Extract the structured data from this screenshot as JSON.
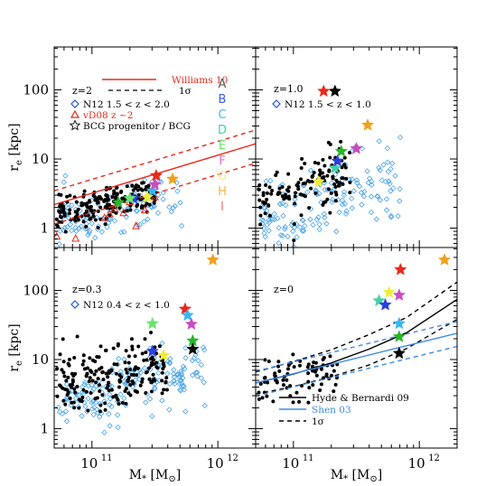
{
  "chart_data": [
    {
      "type": "scatter",
      "panel": "top-left",
      "xlim_log10": [
        10.7,
        12.3
      ],
      "ylim_log10": [
        -0.28,
        2.62
      ],
      "ylabel": "r_e [kpc]",
      "annotation": "z=2",
      "legend": [
        {
          "label": "Williams 10",
          "style": "line",
          "color": "#e8291c"
        },
        {
          "label": "1σ",
          "style": "dashed",
          "color": "#000000"
        },
        {
          "label": "N12  1.5 < z < 2.0",
          "style": "diamond",
          "color": "#1f55e0"
        },
        {
          "label": "vD08 z ~2",
          "style": "triangle",
          "color": "#e8291c"
        },
        {
          "label": "BCG progenitor / BCG",
          "style": "star",
          "color": "#000000"
        }
      ],
      "letters": [
        {
          "text": "A",
          "color": "#555555"
        },
        {
          "text": "B",
          "color": "#3b5be8"
        },
        {
          "text": "C",
          "color": "#41b7f0"
        },
        {
          "text": "D",
          "color": "#44cfa8"
        },
        {
          "text": "E",
          "color": "#6ee36e"
        },
        {
          "text": "F",
          "color": "#e86ad8"
        },
        {
          "text": "G",
          "color": "#f3f07a"
        },
        {
          "text": "H",
          "color": "#f5b54a"
        },
        {
          "text": "I",
          "color": "#f07070"
        }
      ],
      "lines": [
        {
          "name": "Williams 10",
          "color": "#e8291c",
          "dash": false,
          "x_log10": [
            10.7,
            12.3
          ],
          "y_log10": [
            0.34,
            1.22
          ]
        },
        {
          "name": "1σ upper",
          "color": "#e8291c",
          "dash": true,
          "x_log10": [
            10.7,
            12.3
          ],
          "y_log10": [
            0.54,
            1.42
          ]
        },
        {
          "name": "1σ lower",
          "color": "#e8291c",
          "dash": true,
          "x_log10": [
            10.7,
            12.3
          ],
          "y_log10": [
            0.06,
            0.94
          ]
        }
      ],
      "triangles_log": [
        [
          10.72,
          -0.12
        ],
        [
          10.87,
          -0.15
        ],
        [
          11.1,
          0.15
        ],
        [
          11.14,
          0.2
        ],
        [
          11.18,
          0.28
        ],
        [
          11.3,
          0.38
        ],
        [
          11.25,
          0.22
        ],
        [
          11.35,
          0.03
        ],
        [
          11.5,
          0.45
        ],
        [
          11.42,
          0.26
        ]
      ],
      "stars_log": [
        {
          "x": 11.48,
          "y": 0.5,
          "color": "#000000"
        },
        {
          "x": 11.33,
          "y": 0.43,
          "color": "#2a3fe0"
        },
        {
          "x": 11.48,
          "y": 0.54,
          "color": "#38b8f0"
        },
        {
          "x": 11.21,
          "y": 0.37,
          "color": "#2ab52a"
        },
        {
          "x": 11.3,
          "y": 0.43,
          "color": "#6ee36e"
        },
        {
          "x": 11.5,
          "y": 0.63,
          "color": "#c94cc0"
        },
        {
          "x": 11.44,
          "y": 0.45,
          "color": "#f0ec3a"
        },
        {
          "x": 11.64,
          "y": 0.71,
          "color": "#f0a01e"
        },
        {
          "x": 11.51,
          "y": 0.76,
          "color": "#e8291c"
        }
      ],
      "seed": 11,
      "black_cloud": {
        "n": 200,
        "x_log10": [
          10.72,
          11.5
        ],
        "slope": 0.35,
        "y0": 0.32,
        "scatter": 0.13
      },
      "blue_cloud": {
        "n": 110,
        "x_log10": [
          10.72,
          11.72
        ],
        "slope": 0.3,
        "y0": 0.18,
        "scatter": 0.18
      }
    },
    {
      "type": "scatter",
      "panel": "top-right",
      "xlim_log10": [
        10.7,
        12.3
      ],
      "ylim_log10": [
        -0.28,
        2.62
      ],
      "annotation": "z=1.0",
      "legend": [
        {
          "label": "N12  1.5 < z < 1.0",
          "style": "diamond",
          "color": "#1f55e0"
        }
      ],
      "stars_log": [
        {
          "x": 11.33,
          "y": 1.98,
          "color": "#000000"
        },
        {
          "x": 11.24,
          "y": 1.98,
          "color": "#e8291c"
        },
        {
          "x": 11.59,
          "y": 1.49,
          "color": "#f0a01e"
        },
        {
          "x": 11.5,
          "y": 1.15,
          "color": "#c94cc0"
        },
        {
          "x": 11.38,
          "y": 1.11,
          "color": "#2ab52a"
        },
        {
          "x": 11.33,
          "y": 0.87,
          "color": "#44cfa8"
        },
        {
          "x": 11.35,
          "y": 0.97,
          "color": "#2a3fe0"
        },
        {
          "x": 11.2,
          "y": 0.67,
          "color": "#f0ec3a"
        }
      ],
      "seed": 23,
      "black_cloud": {
        "n": 130,
        "x_log10": [
          10.72,
          11.45
        ],
        "slope": 0.6,
        "y0": 0.55,
        "scatter": 0.2
      },
      "blue_cloud": {
        "n": 150,
        "x_log10": [
          10.72,
          11.85
        ],
        "slope": 0.55,
        "y0": 0.28,
        "scatter": 0.25
      }
    },
    {
      "type": "scatter",
      "panel": "bottom-left",
      "xlim_log10": [
        10.7,
        12.3
      ],
      "ylim_log10": [
        -0.28,
        2.62
      ],
      "ylabel": "r_e [kpc]",
      "xlabel": "M_* [M_⊙]",
      "annotation": "z=0.3",
      "legend": [
        {
          "label": "N12  0.4 < z < 1.0",
          "style": "diamond",
          "color": "#1f55e0"
        }
      ],
      "stars_log": [
        {
          "x": 11.96,
          "y": 2.44,
          "color": "#f0a01e"
        },
        {
          "x": 11.74,
          "y": 1.73,
          "color": "#e8291c"
        },
        {
          "x": 11.76,
          "y": 1.64,
          "color": "#38b8f0"
        },
        {
          "x": 11.79,
          "y": 1.51,
          "color": "#c94cc0"
        },
        {
          "x": 11.48,
          "y": 1.52,
          "color": "#6ee36e"
        },
        {
          "x": 11.8,
          "y": 1.27,
          "color": "#2ab52a"
        },
        {
          "x": 11.8,
          "y": 1.15,
          "color": "#000000"
        },
        {
          "x": 11.48,
          "y": 1.12,
          "color": "#2a3fe0"
        },
        {
          "x": 11.57,
          "y": 1.06,
          "color": "#f0ec3a"
        }
      ],
      "seed": 37,
      "black_cloud": {
        "n": 200,
        "x_log10": [
          10.72,
          11.6
        ],
        "slope": 0.3,
        "y0": 0.7,
        "scatter": 0.22
      },
      "blue_cloud": {
        "n": 170,
        "x_log10": [
          10.72,
          11.9
        ],
        "slope": 0.45,
        "y0": 0.45,
        "scatter": 0.22
      }
    },
    {
      "type": "scatter",
      "panel": "bottom-right",
      "xlim_log10": [
        10.7,
        12.3
      ],
      "ylim_log10": [
        -0.28,
        2.62
      ],
      "xlabel": "M_* [M_⊙]",
      "annotation": "z=0",
      "legend": [
        {
          "label": "Hyde & Bernardi 09",
          "style": "line",
          "color": "#000000"
        },
        {
          "label": "Shen 03",
          "style": "line",
          "color": "#3b8be8"
        },
        {
          "label": "1σ",
          "style": "dashed",
          "color": "#000000"
        }
      ],
      "lines": [
        {
          "name": "Hyde & Bernardi 09",
          "color": "#000000",
          "dash": false,
          "x_log10": [
            10.7,
            11.0,
            11.3,
            11.6,
            11.9,
            12.3
          ],
          "y_log10": [
            0.66,
            0.79,
            0.95,
            1.15,
            1.39,
            1.87
          ]
        },
        {
          "name": "1σ upper",
          "color": "#000000",
          "dash": true,
          "x_log10": [
            10.7,
            11.0,
            11.3,
            11.6,
            11.9,
            12.3
          ],
          "y_log10": [
            0.82,
            0.97,
            1.14,
            1.36,
            1.61,
            2.12
          ]
        },
        {
          "name": "1σ lower",
          "color": "#000000",
          "dash": true,
          "x_log10": [
            10.7,
            11.0,
            11.3,
            11.6,
            11.9,
            12.3
          ],
          "y_log10": [
            0.5,
            0.61,
            0.75,
            0.92,
            1.16,
            1.58
          ]
        },
        {
          "name": "Shen 03",
          "color": "#3b8be8",
          "dash": false,
          "x_log10": [
            10.7,
            12.3
          ],
          "y_log10": [
            0.66,
            1.38
          ]
        },
        {
          "name": "Shen 03 upper",
          "color": "#3b8be8",
          "dash": true,
          "x_log10": [
            10.7,
            12.3
          ],
          "y_log10": [
            0.83,
            1.55
          ]
        },
        {
          "name": "Shen 03 lower",
          "color": "#3b8be8",
          "dash": true,
          "x_log10": [
            10.7,
            12.3
          ],
          "y_log10": [
            0.47,
            1.19
          ]
        }
      ],
      "stars_log": [
        {
          "x": 12.2,
          "y": 2.44,
          "color": "#f0a01e"
        },
        {
          "x": 11.85,
          "y": 2.3,
          "color": "#e8291c"
        },
        {
          "x": 11.76,
          "y": 1.97,
          "color": "#f0ec3a"
        },
        {
          "x": 11.84,
          "y": 1.93,
          "color": "#c94cc0"
        },
        {
          "x": 11.68,
          "y": 1.85,
          "color": "#44cfa8"
        },
        {
          "x": 11.73,
          "y": 1.79,
          "color": "#2a3fe0"
        },
        {
          "x": 11.84,
          "y": 1.52,
          "color": "#38b8f0"
        },
        {
          "x": 11.84,
          "y": 1.33,
          "color": "#2ab52a"
        },
        {
          "x": 11.84,
          "y": 1.09,
          "color": "#000000"
        }
      ],
      "seed": 53,
      "black_cloud": {
        "n": 80,
        "x_log10": [
          10.72,
          11.35
        ],
        "slope": 0.45,
        "y0": 0.75,
        "scatter": 0.16
      },
      "blue_cloud": {
        "n": 0,
        "x_log10": [
          10.7,
          10.7
        ],
        "slope": 0,
        "y0": 0,
        "scatter": 0
      }
    }
  ],
  "axes": {
    "y_ticks": [
      {
        "value_log10": 0,
        "label": "1"
      },
      {
        "value_log10": 1,
        "label": "10"
      },
      {
        "value_log10": 2,
        "label": "100"
      }
    ],
    "x_ticks": [
      {
        "value_log10": 11,
        "label": "10",
        "exp": "11"
      },
      {
        "value_log10": 12,
        "label": "10",
        "exp": "12"
      }
    ],
    "ylabel": "r",
    "ylabel_sub": "e",
    "ylabel_unit": " [kpc]",
    "xlabel": "M",
    "xlabel_sub": "*",
    "xlabel_unit_open": " [M",
    "xlabel_unit_sub": "⊙",
    "xlabel_unit_close": "]"
  },
  "colors": {
    "black_points": "#000000",
    "blue_diamonds": "#4aa3e8"
  }
}
